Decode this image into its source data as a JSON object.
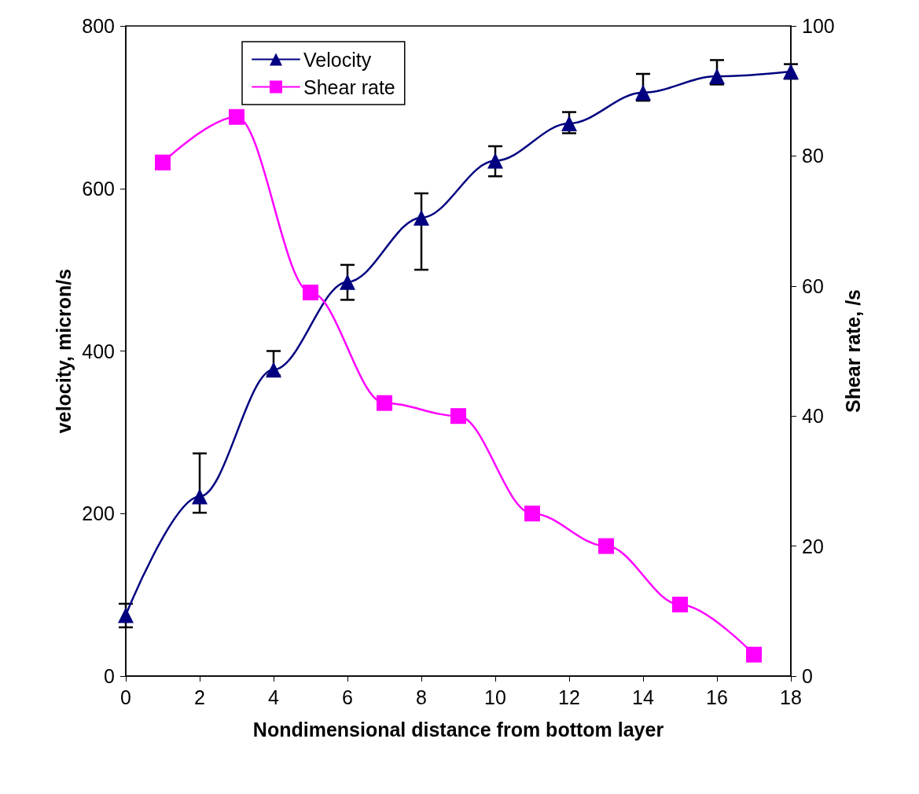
{
  "chart_data": {
    "type": "line",
    "xlabel": "Nondimensional distance from bottom layer",
    "ylabel": "velocity, micron/s",
    "y2label": "Shear rate, /s",
    "xlim": [
      0,
      18
    ],
    "xticks": [
      0,
      2,
      4,
      6,
      8,
      10,
      12,
      14,
      16,
      18
    ],
    "ylim": [
      0,
      800
    ],
    "yticks": [
      0,
      200,
      400,
      600,
      800
    ],
    "y2lim": [
      0,
      100
    ],
    "y2ticks": [
      0,
      20,
      40,
      60,
      80,
      100
    ],
    "grid": false,
    "legend": "top",
    "line_style": "solid",
    "series": [
      {
        "name": "Velocity",
        "color": "#000080",
        "marker": "triangle",
        "x": [
          0,
          2,
          4,
          6,
          8,
          10,
          12,
          14,
          16,
          18
        ],
        "values": [
          75,
          221,
          377,
          485,
          564,
          634,
          680,
          718,
          738,
          744
        ],
        "errors": [
          [
            60,
            89
          ],
          [
            201,
            274
          ],
          [
            370,
            400
          ],
          [
            463,
            506
          ],
          [
            500,
            594
          ],
          [
            615,
            652
          ],
          [
            668,
            694
          ],
          [
            708,
            741
          ],
          [
            728,
            758
          ],
          [
            735,
            753
          ]
        ]
      },
      {
        "name": "Shear rate",
        "color": "#ff00ff",
        "marker": "square",
        "axis": "y2",
        "x": [
          1,
          3,
          5,
          7,
          9,
          11,
          13,
          15,
          17
        ],
        "values": [
          79,
          86,
          59,
          42,
          40,
          25,
          20,
          11,
          3.3
        ]
      }
    ]
  }
}
